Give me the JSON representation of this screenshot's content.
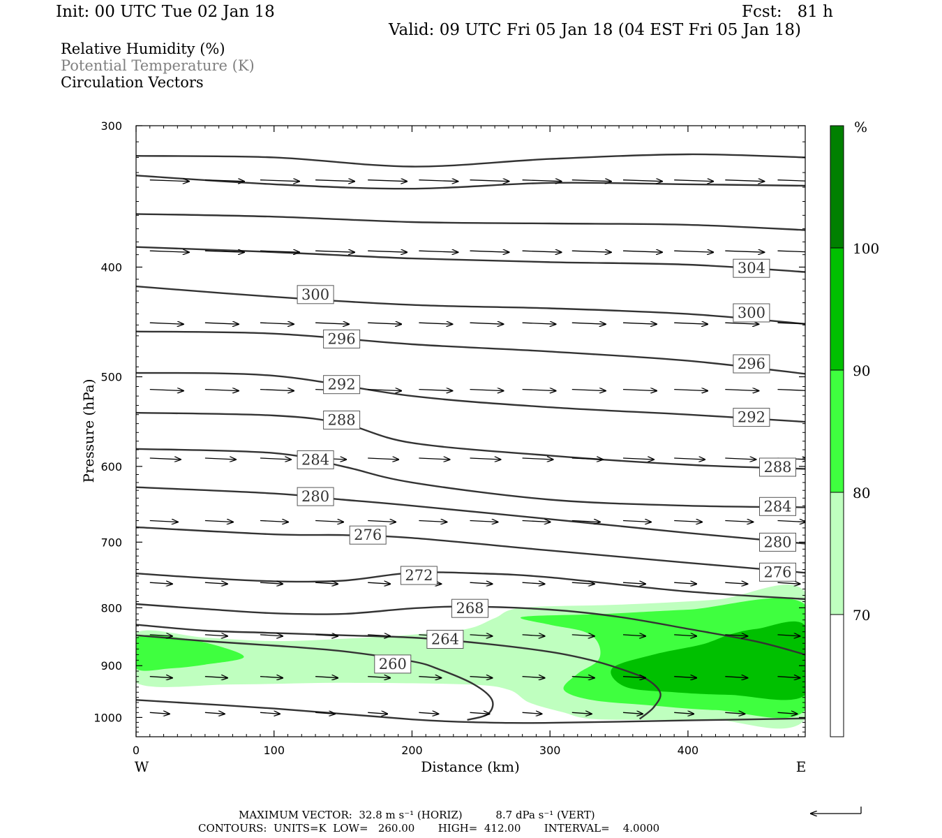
{
  "header": {
    "init": "Init: 00 UTC Tue 02 Jan 18",
    "fcst": "Fcst:   81 h",
    "valid": "Valid: 09 UTC Fri 05 Jan 18 (04 EST Fri 05 Jan 18)"
  },
  "legend": {
    "rh": "Relative Humidity (%)",
    "theta": "Potential Temperature (K)",
    "vectors": "Circulation Vectors"
  },
  "colors": {
    "rh70": "#bfffbf",
    "rh80": "#3fff3f",
    "rh90": "#00c000",
    "rh100": "#008000",
    "contour": "#333333",
    "grey_text": "#808080"
  },
  "chart_data": {
    "type": "cross-section",
    "xlabel": "Distance (km)",
    "ylabel": "Pressure (hPa)",
    "xlim": [
      0,
      485
    ],
    "ylim": [
      1040,
      300
    ],
    "y_scale": "log-pressure",
    "x_ticks": [
      0,
      100,
      200,
      300,
      400
    ],
    "y_ticks": [
      300,
      400,
      500,
      600,
      700,
      800,
      900,
      1000
    ],
    "x_end_labels": {
      "left": "W",
      "right": "E"
    },
    "colorbar": {
      "unit": "%",
      "levels": [
        70,
        80,
        90,
        100
      ],
      "colors": [
        "#ffffff",
        "#bfffbf",
        "#3fff3f",
        "#00c000",
        "#008000"
      ]
    },
    "rh_fill": [
      {
        "level": 70,
        "polygons": [
          [
            [
              0,
              842
            ],
            [
              50,
              850
            ],
            [
              100,
              856
            ],
            [
              150,
              852
            ],
            [
              200,
              845
            ],
            [
              240,
              835
            ],
            [
              260,
              817
            ],
            [
              280,
              800
            ],
            [
              350,
              795
            ],
            [
              420,
              787
            ],
            [
              485,
              775
            ],
            [
              485,
              1003
            ],
            [
              420,
              1005
            ],
            [
              380,
              1005
            ],
            [
              330,
              1003
            ],
            [
              310,
              990
            ],
            [
              285,
              970
            ],
            [
              270,
              945
            ],
            [
              240,
              935
            ],
            [
              150,
              932
            ],
            [
              70,
              935
            ],
            [
              0,
              932
            ]
          ]
        ]
      },
      {
        "level": 80,
        "polygons": [
          [
            [
              0,
              850
            ],
            [
              30,
              850
            ],
            [
              60,
              865
            ],
            [
              78,
              885
            ],
            [
              50,
              898
            ],
            [
              25,
              905
            ],
            [
              0,
              905
            ]
          ],
          [
            [
              280,
              815
            ],
            [
              340,
              810
            ],
            [
              400,
              803
            ],
            [
              485,
              795
            ],
            [
              485,
              985
            ],
            [
              420,
              985
            ],
            [
              370,
              975
            ],
            [
              330,
              965
            ],
            [
              310,
              945
            ],
            [
              320,
              915
            ],
            [
              335,
              890
            ],
            [
              335,
              860
            ],
            [
              325,
              840
            ],
            [
              300,
              828
            ]
          ]
        ]
      },
      {
        "level": 90,
        "polygons": [
          [
            [
              345,
              905
            ],
            [
              375,
              880
            ],
            [
              410,
              862
            ],
            [
              430,
              845
            ],
            [
              450,
              835
            ],
            [
              485,
              830
            ],
            [
              485,
              955
            ],
            [
              430,
              955
            ],
            [
              390,
              950
            ],
            [
              355,
              940
            ]
          ]
        ]
      }
    ],
    "theta_contours": [
      {
        "value": 304,
        "points": [
          [
            0,
            384
          ],
          [
            100,
            388
          ],
          [
            200,
            393
          ],
          [
            300,
            396
          ],
          [
            400,
            398
          ],
          [
            485,
            404
          ]
        ]
      },
      {
        "value": 300,
        "points": [
          [
            0,
            416
          ],
          [
            100,
            425
          ],
          [
            200,
            432
          ],
          [
            300,
            435
          ],
          [
            400,
            440
          ],
          [
            485,
            449
          ]
        ]
      },
      {
        "value": 296,
        "points": [
          [
            0,
            456
          ],
          [
            100,
            458
          ],
          [
            200,
            468
          ],
          [
            300,
            475
          ],
          [
            400,
            484
          ],
          [
            485,
            497
          ]
        ]
      },
      {
        "value": 292,
        "points": [
          [
            0,
            496
          ],
          [
            100,
            499
          ],
          [
            200,
            520
          ],
          [
            300,
            532
          ],
          [
            400,
            540
          ],
          [
            485,
            548
          ]
        ]
      },
      {
        "value": 288,
        "points": [
          [
            0,
            538
          ],
          [
            100,
            541
          ],
          [
            150,
            550
          ],
          [
            200,
            572
          ],
          [
            300,
            587
          ],
          [
            400,
            598
          ],
          [
            485,
            603
          ]
        ]
      },
      {
        "value": 284,
        "points": [
          [
            0,
            579
          ],
          [
            100,
            584
          ],
          [
            150,
            600
          ],
          [
            200,
            620
          ],
          [
            300,
            642
          ],
          [
            400,
            650
          ],
          [
            485,
            652
          ]
        ]
      },
      {
        "value": 280,
        "points": [
          [
            0,
            626
          ],
          [
            100,
            634
          ],
          [
            150,
            642
          ],
          [
            200,
            650
          ],
          [
            300,
            668
          ],
          [
            400,
            687
          ],
          [
            485,
            702
          ]
        ]
      },
      {
        "value": 276,
        "points": [
          [
            0,
            679
          ],
          [
            100,
            689
          ],
          [
            150,
            690
          ],
          [
            200,
            694
          ],
          [
            300,
            712
          ],
          [
            400,
            730
          ],
          [
            485,
            745
          ]
        ]
      },
      {
        "value": 272,
        "points": [
          [
            0,
            746
          ],
          [
            50,
            753
          ],
          [
            100,
            758
          ],
          [
            150,
            757
          ],
          [
            200,
            745
          ],
          [
            250,
            746
          ],
          [
            300,
            752
          ],
          [
            400,
            774
          ],
          [
            485,
            786
          ]
        ]
      },
      {
        "value": 268,
        "points": [
          [
            0,
            794
          ],
          [
            50,
            802
          ],
          [
            100,
            809
          ],
          [
            150,
            810
          ],
          [
            200,
            801
          ],
          [
            240,
            798
          ],
          [
            300,
            803
          ],
          [
            350,
            815
          ],
          [
            400,
            835
          ],
          [
            450,
            857
          ],
          [
            485,
            880
          ]
        ]
      },
      {
        "value": 264,
        "points": [
          [
            0,
            828
          ],
          [
            50,
            838
          ],
          [
            100,
            842
          ],
          [
            150,
            846
          ],
          [
            200,
            850
          ],
          [
            250,
            860
          ],
          [
            300,
            875
          ],
          [
            330,
            890
          ],
          [
            350,
            905
          ],
          [
            370,
            925
          ],
          [
            380,
            952
          ],
          [
            375,
            980
          ],
          [
            365,
            1003
          ]
        ]
      },
      {
        "value": 260,
        "points": [
          [
            0,
            846
          ],
          [
            50,
            856
          ],
          [
            100,
            864
          ],
          [
            150,
            874
          ],
          [
            200,
            892
          ],
          [
            220,
            907
          ],
          [
            245,
            935
          ],
          [
            258,
            965
          ],
          [
            255,
            993
          ],
          [
            240,
            1005
          ]
        ]
      }
    ],
    "theta_extra": [
      [
        [
          0,
          319
        ],
        [
          100,
          320
        ],
        [
          200,
          326
        ],
        [
          300,
          321
        ],
        [
          400,
          318
        ],
        [
          485,
          320
        ]
      ],
      [
        [
          0,
          332
        ],
        [
          100,
          338
        ],
        [
          200,
          341
        ],
        [
          300,
          337
        ],
        [
          400,
          338
        ],
        [
          485,
          339
        ]
      ],
      [
        [
          0,
          359
        ],
        [
          100,
          361
        ],
        [
          200,
          365
        ],
        [
          300,
          366
        ],
        [
          400,
          367
        ],
        [
          485,
          371
        ]
      ],
      [
        [
          0,
          965
        ],
        [
          100,
          982
        ],
        [
          200,
          1004
        ],
        [
          250,
          1010
        ],
        [
          300,
          1011
        ],
        [
          400,
          1006
        ],
        [
          485,
          1002
        ]
      ]
    ],
    "contour_labels": [
      {
        "text": "304",
        "x": 446,
        "p": 401
      },
      {
        "text": "300",
        "x": 130,
        "p": 423
      },
      {
        "text": "300",
        "x": 446,
        "p": 439
      },
      {
        "text": "296",
        "x": 149,
        "p": 463
      },
      {
        "text": "296",
        "x": 446,
        "p": 487
      },
      {
        "text": "292",
        "x": 149,
        "p": 508
      },
      {
        "text": "292",
        "x": 446,
        "p": 543
      },
      {
        "text": "288",
        "x": 149,
        "p": 546
      },
      {
        "text": "288",
        "x": 465,
        "p": 601
      },
      {
        "text": "284",
        "x": 130,
        "p": 592
      },
      {
        "text": "284",
        "x": 465,
        "p": 651
      },
      {
        "text": "280",
        "x": 130,
        "p": 638
      },
      {
        "text": "280",
        "x": 465,
        "p": 700
      },
      {
        "text": "276",
        "x": 168,
        "p": 690
      },
      {
        "text": "276",
        "x": 465,
        "p": 744
      },
      {
        "text": "272",
        "x": 205,
        "p": 749
      },
      {
        "text": "268",
        "x": 242,
        "p": 801
      },
      {
        "text": "264",
        "x": 224,
        "p": 853
      },
      {
        "text": "260",
        "x": 186,
        "p": 897
      }
    ],
    "vectors": {
      "rows": [
        {
          "p": 335,
          "xs": [
            10,
            50,
            90,
            130,
            168,
            205,
            242,
            280,
            316,
            353,
            390,
            427,
            465
          ],
          "u": 28
        },
        {
          "p": 387,
          "xs": [
            10,
            50,
            90,
            130,
            168,
            205,
            242,
            280,
            316,
            353,
            390,
            427,
            465
          ],
          "u": 28
        },
        {
          "p": 448,
          "xs": [
            10,
            50,
            90,
            130,
            168,
            205,
            242,
            280,
            316,
            353,
            390,
            427,
            465
          ],
          "u": 24
        },
        {
          "p": 513,
          "xs": [
            10,
            50,
            90,
            130,
            168,
            205,
            242,
            280,
            316,
            353,
            390,
            427,
            465
          ],
          "u": 24
        },
        {
          "p": 590,
          "xs": [
            10,
            50,
            90,
            130,
            168,
            205,
            242,
            280,
            316,
            353,
            390,
            427,
            465
          ],
          "u": 22
        },
        {
          "p": 670,
          "xs": [
            10,
            50,
            90,
            130,
            168,
            205,
            242,
            280,
            316,
            353,
            390,
            427,
            465
          ],
          "u": 20
        },
        {
          "p": 760,
          "xs": [
            10,
            50,
            90,
            130,
            168,
            205,
            242,
            280,
            316,
            353,
            390,
            427,
            465
          ],
          "u": 16
        },
        {
          "p": 845,
          "xs": [
            10,
            50,
            90,
            130,
            168,
            205,
            242,
            280,
            316,
            353,
            390,
            427,
            465
          ],
          "u": 16
        },
        {
          "p": 920,
          "xs": [
            10,
            50,
            90,
            130,
            168,
            205,
            242,
            280,
            316,
            353,
            390,
            427,
            465
          ],
          "u": 16
        },
        {
          "p": 990,
          "xs": [
            10,
            50,
            90,
            130,
            168,
            205,
            242,
            280,
            316,
            353,
            390,
            427,
            465
          ],
          "u": 14
        }
      ]
    }
  },
  "footer": {
    "max_vector": "MAXIMUM VECTOR:  32.8 m s⁻¹ (HORIZ)          8.7 dPa s⁻¹ (VERT)",
    "contours": "CONTOURS:  UNITS=K  LOW=   260.00       HIGH=  412.00       INTERVAL=    4.0000"
  }
}
